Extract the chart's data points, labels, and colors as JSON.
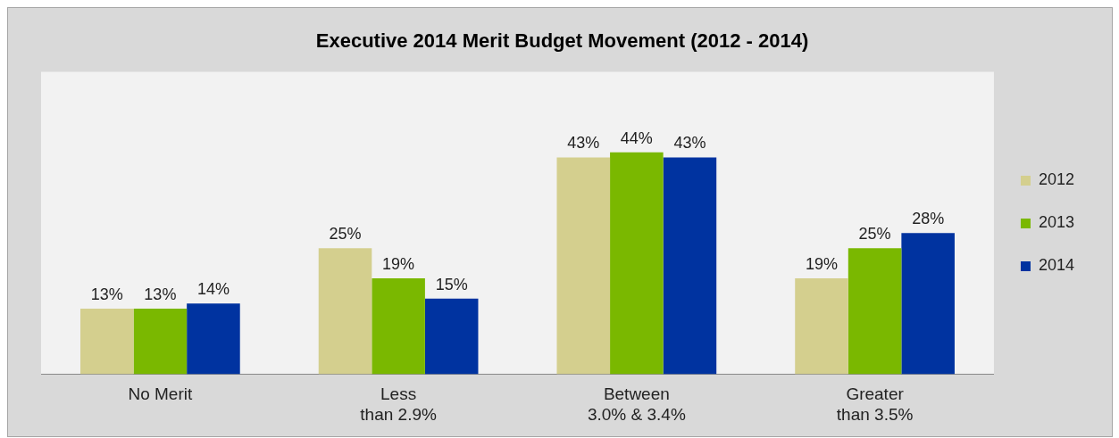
{
  "chart_data": {
    "type": "bar",
    "title": "Executive 2014 Merit Budget Movement (2012 - 2014)",
    "categories": [
      "No Merit",
      "Less\nthan 2.9%",
      "Between\n3.0% & 3.4%",
      "Greater\nthan 3.5%"
    ],
    "series": [
      {
        "name": "2012",
        "color": "#d4cf8e",
        "values": [
          13,
          25,
          43,
          19
        ],
        "value_labels": [
          "13%",
          "25%",
          "43%",
          "19%"
        ]
      },
      {
        "name": "2013",
        "color": "#7ab800",
        "values": [
          13,
          19,
          44,
          25
        ],
        "value_labels": [
          "13%",
          "19%",
          "44%",
          "25%"
        ]
      },
      {
        "name": "2014",
        "color": "#0033a0",
        "values": [
          14,
          15,
          43,
          28
        ],
        "value_labels": [
          "14%",
          "15%",
          "43%",
          "28%"
        ]
      }
    ],
    "tick_labels": "x",
    "legend": "right",
    "grid": false
  }
}
